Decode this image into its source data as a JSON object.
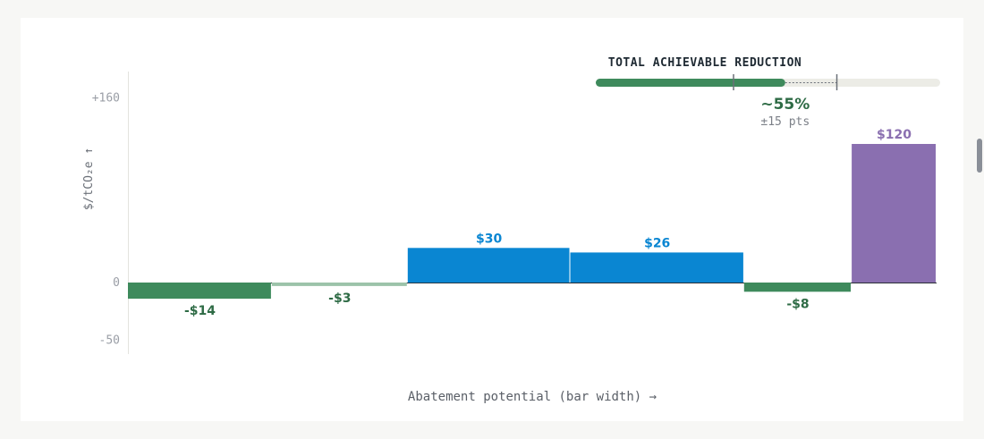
{
  "chart_data": {
    "type": "bar",
    "subtype": "variable-width (marginal abatement cost curve)",
    "ylabel": "$/tCO₂e ↑",
    "xlabel": "Abatement potential (bar width) →",
    "yticks": [
      "+160",
      "0",
      "-50"
    ],
    "ytick_values": [
      160,
      0,
      -50
    ],
    "ylim": [
      -55,
      175
    ],
    "x_total": 100,
    "bars": [
      {
        "value": -14,
        "label": "-$14",
        "width": 17.8,
        "color": "#3e8a5c"
      },
      {
        "value": -3,
        "label": "-$3",
        "width": 16.8,
        "color": "#9cc3a9"
      },
      {
        "value": 30,
        "label": "$30",
        "width": 20.1,
        "color": "#0a86d2"
      },
      {
        "value": 26,
        "label": "$26",
        "width": 21.5,
        "color": "#0a86d2"
      },
      {
        "value": -8,
        "label": "-$8",
        "width": 13.3,
        "color": "#3e8a5c"
      },
      {
        "value": 120,
        "label": "$120",
        "width": 10.5,
        "color": "#8a6fb0"
      }
    ],
    "label_colors": {
      "negative": "#2e6b45",
      "positive": "#0a86d2",
      "high": "#8a6fb0"
    },
    "grid": false
  },
  "reduction": {
    "title": "TOTAL ACHIEVABLE REDUCTION",
    "value_text": "~55%",
    "range_text": "±15 pts",
    "value": 55,
    "low": 40,
    "high": 70,
    "colors": {
      "fill": "#3e8a5c",
      "track": "#ecece6",
      "marker": "#6b7078"
    }
  }
}
